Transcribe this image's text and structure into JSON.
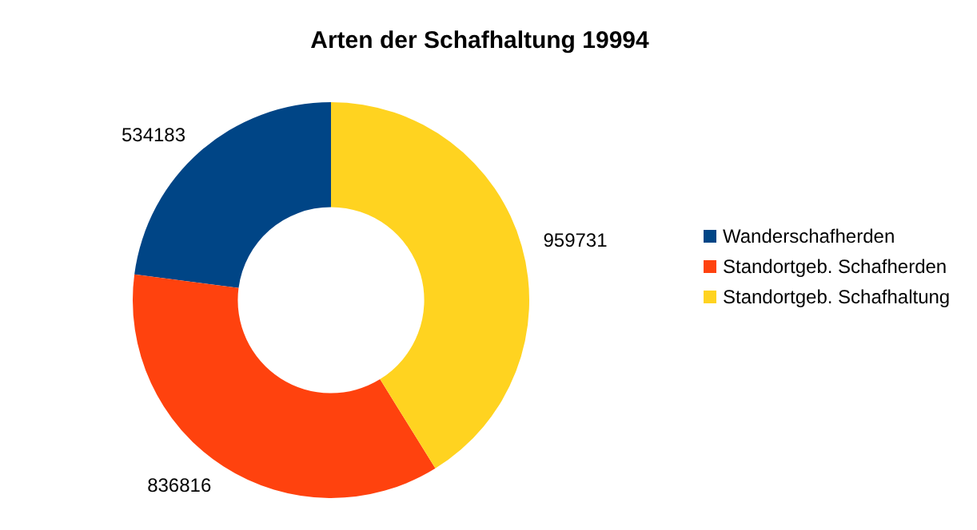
{
  "chart_data": {
    "type": "donut",
    "title": "Arten der Schafhaltung 19994",
    "categories": [
      "Wanderschafherden",
      "Standortgeb. Schafherden",
      "Standortgeb. Schafhaltung"
    ],
    "values": [
      534183,
      836816,
      959731
    ],
    "colors": [
      "#004586",
      "#ff420e",
      "#ffd320"
    ],
    "data_labels": true,
    "legend": "right"
  }
}
